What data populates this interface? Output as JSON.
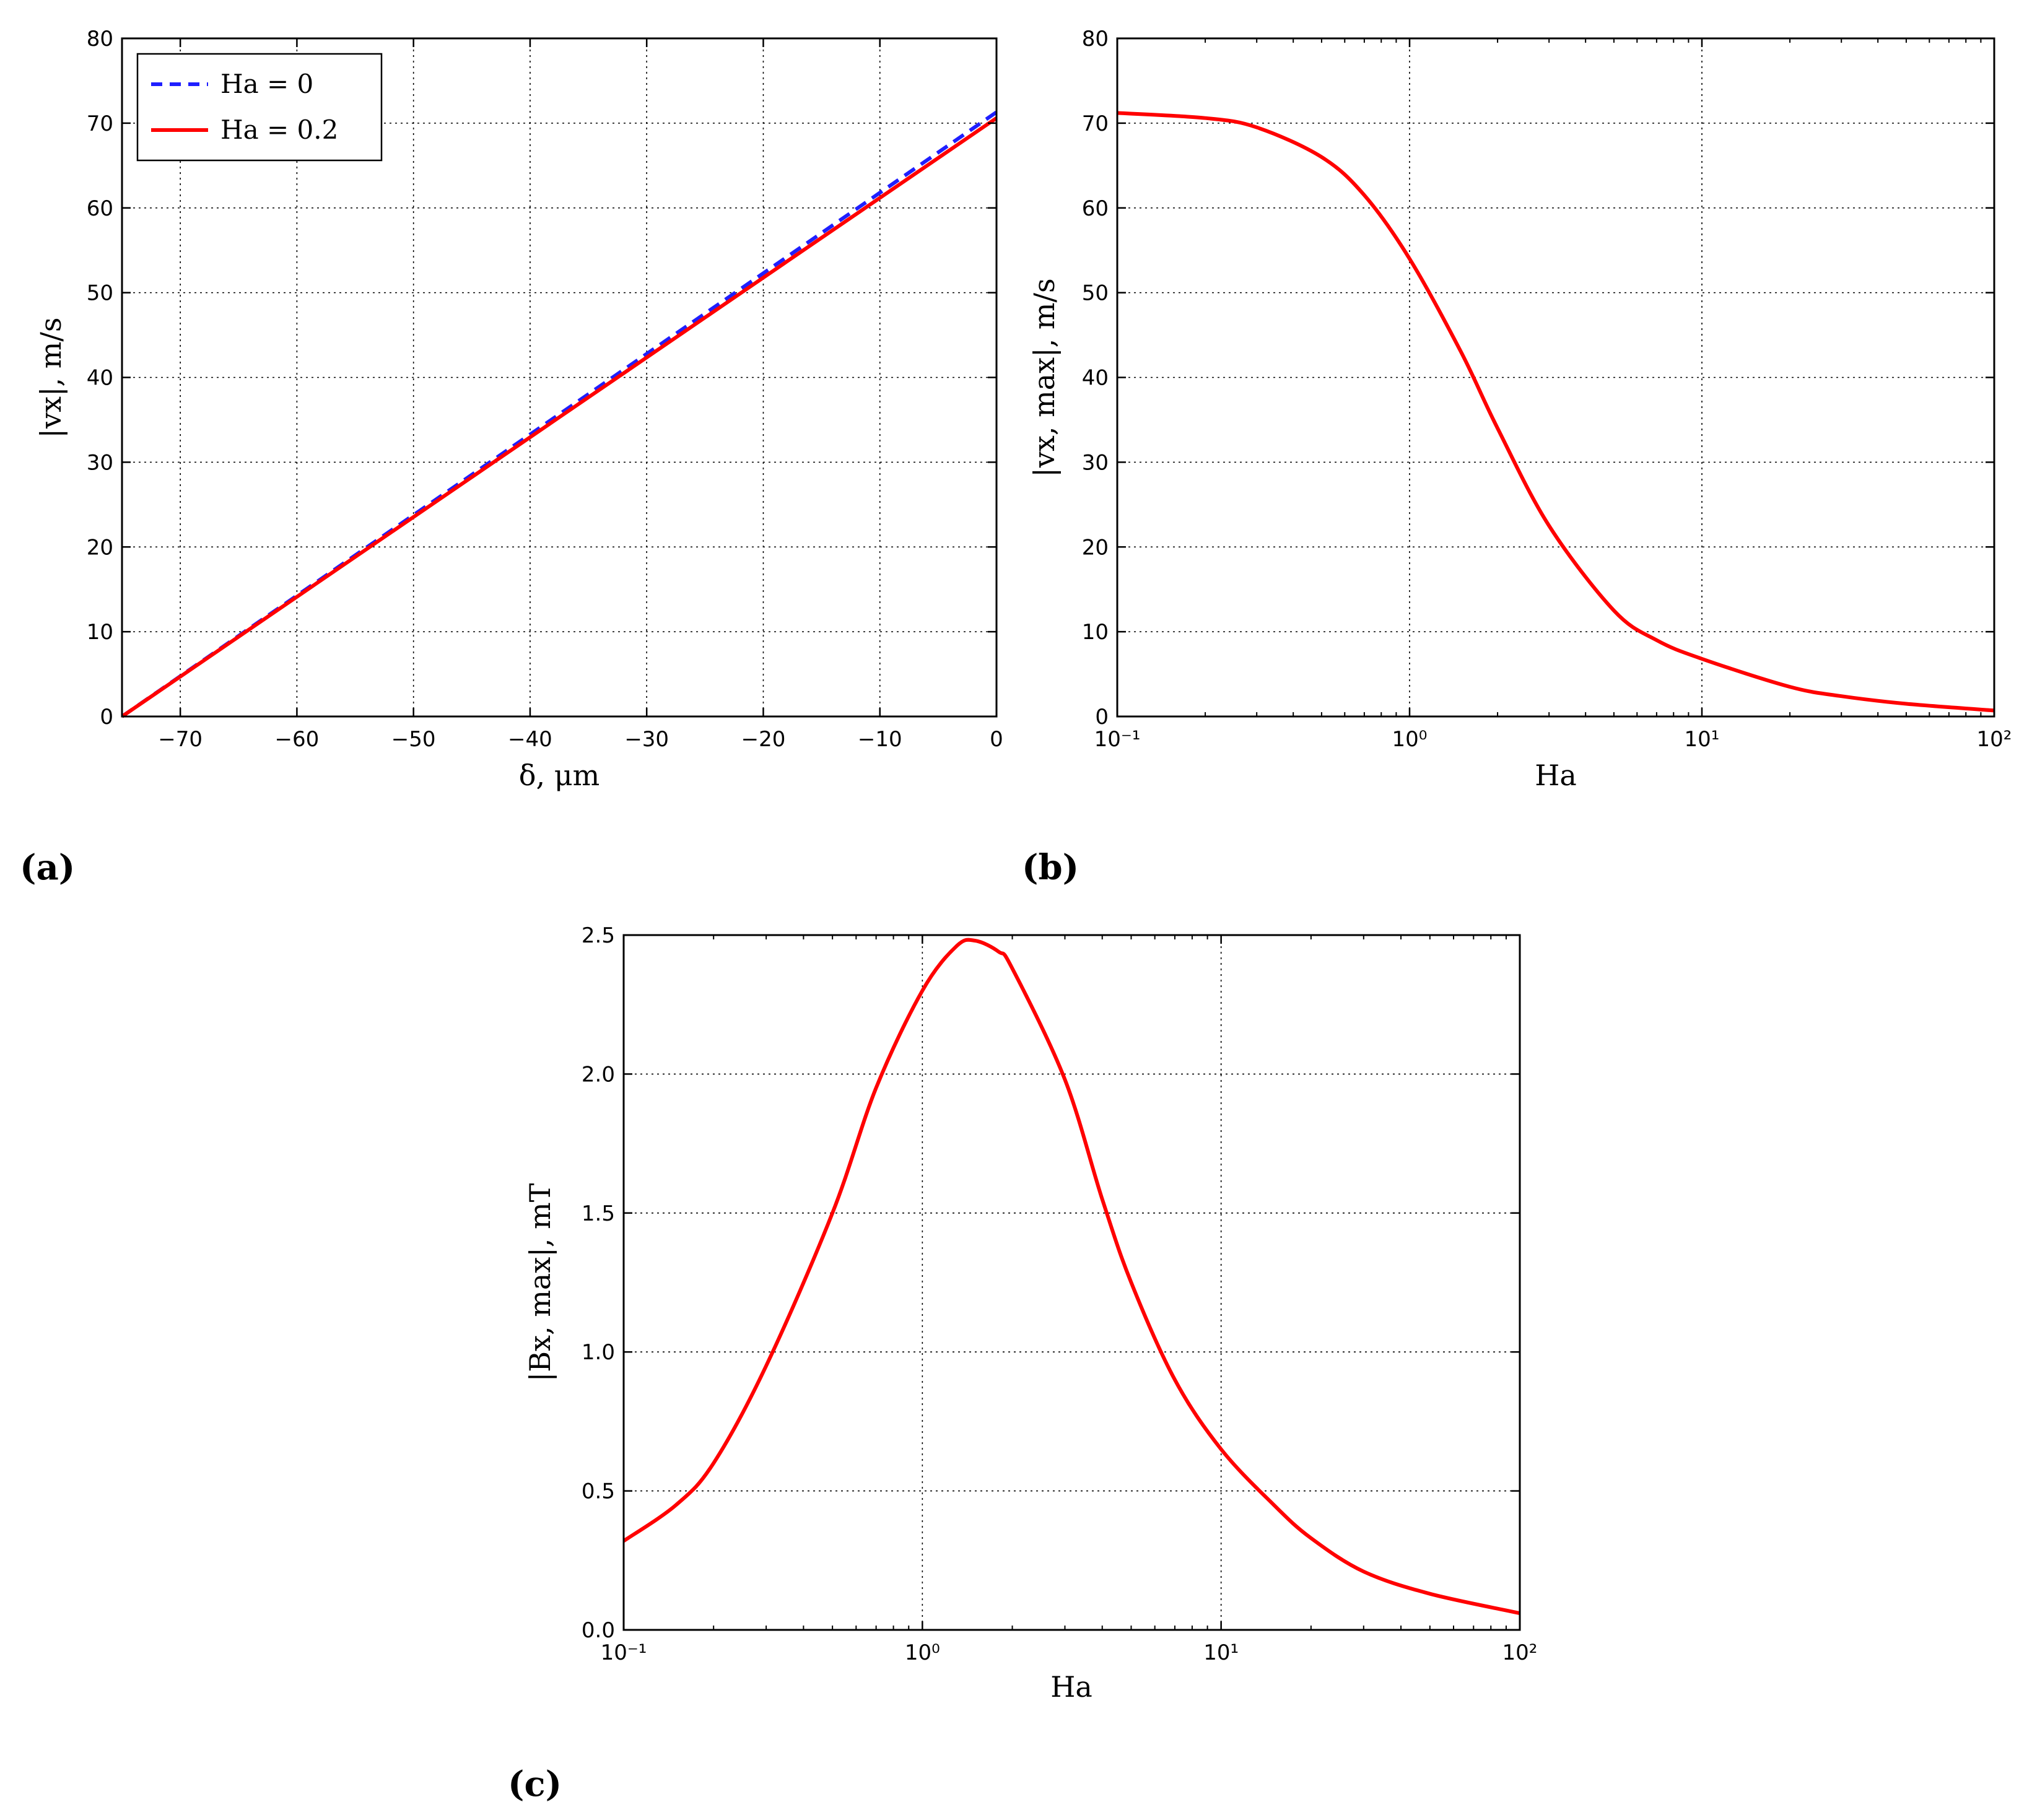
{
  "panels": [
    {
      "label": "(a)"
    },
    {
      "label": "(b)"
    },
    {
      "label": "(c)"
    }
  ],
  "chart_data": [
    {
      "id": "a",
      "type": "line",
      "xlabel": "δ, μm",
      "ylabel": "|vx|, m/s",
      "xlim": [
        -75,
        0
      ],
      "ylim": [
        0,
        80
      ],
      "xticks": [
        "−70",
        "−60",
        "−50",
        "−40",
        "−30",
        "−20",
        "−10",
        "0"
      ],
      "yticks": [
        "0",
        "10",
        "20",
        "30",
        "40",
        "50",
        "60",
        "70",
        "80"
      ],
      "grid": true,
      "legend": "top-left",
      "series": [
        {
          "name": "Ha = 0",
          "color": "#1f1fff",
          "style": "dashed",
          "x": [
            -75,
            0
          ],
          "y": [
            0,
            71.3
          ]
        },
        {
          "name": "Ha = 0.2",
          "color": "#ff0000",
          "style": "solid",
          "x": [
            -75,
            0
          ],
          "y": [
            0,
            70.6
          ]
        }
      ]
    },
    {
      "id": "b",
      "type": "line",
      "xlabel": "Ha",
      "ylabel": "|vx, max|, m/s",
      "xscale": "log",
      "xlim": [
        0.1,
        100
      ],
      "ylim": [
        0,
        80
      ],
      "xticks": [
        "10⁻¹",
        "10⁰",
        "10¹",
        "10²"
      ],
      "yticks": [
        "0",
        "10",
        "20",
        "30",
        "40",
        "50",
        "60",
        "70",
        "80"
      ],
      "grid": true,
      "series": [
        {
          "color": "#ff0000",
          "style": "solid",
          "x": [
            0.1,
            0.2,
            0.3,
            0.5,
            0.7,
            1.0,
            1.5,
            2.0,
            3.0,
            5.0,
            7.0,
            10,
            20,
            30,
            50,
            100
          ],
          "y": [
            71.2,
            70.6,
            69.5,
            66.0,
            61.5,
            54.0,
            43.0,
            34.0,
            22.5,
            12.5,
            9.0,
            6.8,
            3.5,
            2.4,
            1.5,
            0.7
          ]
        }
      ]
    },
    {
      "id": "c",
      "type": "line",
      "xlabel": "Ha",
      "ylabel": "|Bx, max|, mT",
      "xscale": "log",
      "xlim": [
        0.1,
        100
      ],
      "ylim": [
        0,
        2.5
      ],
      "xticks": [
        "10⁻¹",
        "10⁰",
        "10¹",
        "10²"
      ],
      "yticks": [
        "0.0",
        "0.5",
        "1.0",
        "1.5",
        "2.0",
        "2.5"
      ],
      "grid": true,
      "series": [
        {
          "color": "#ff0000",
          "style": "solid",
          "x": [
            0.1,
            0.15,
            0.2,
            0.3,
            0.5,
            0.7,
            1.0,
            1.3,
            1.5,
            1.8,
            2.0,
            3.0,
            4.0,
            5.0,
            7.0,
            10,
            15,
            20,
            30,
            50,
            100
          ],
          "y": [
            0.32,
            0.45,
            0.6,
            0.95,
            1.5,
            1.95,
            2.3,
            2.46,
            2.48,
            2.44,
            2.38,
            1.98,
            1.55,
            1.25,
            0.9,
            0.65,
            0.45,
            0.33,
            0.21,
            0.13,
            0.06
          ]
        }
      ]
    }
  ]
}
